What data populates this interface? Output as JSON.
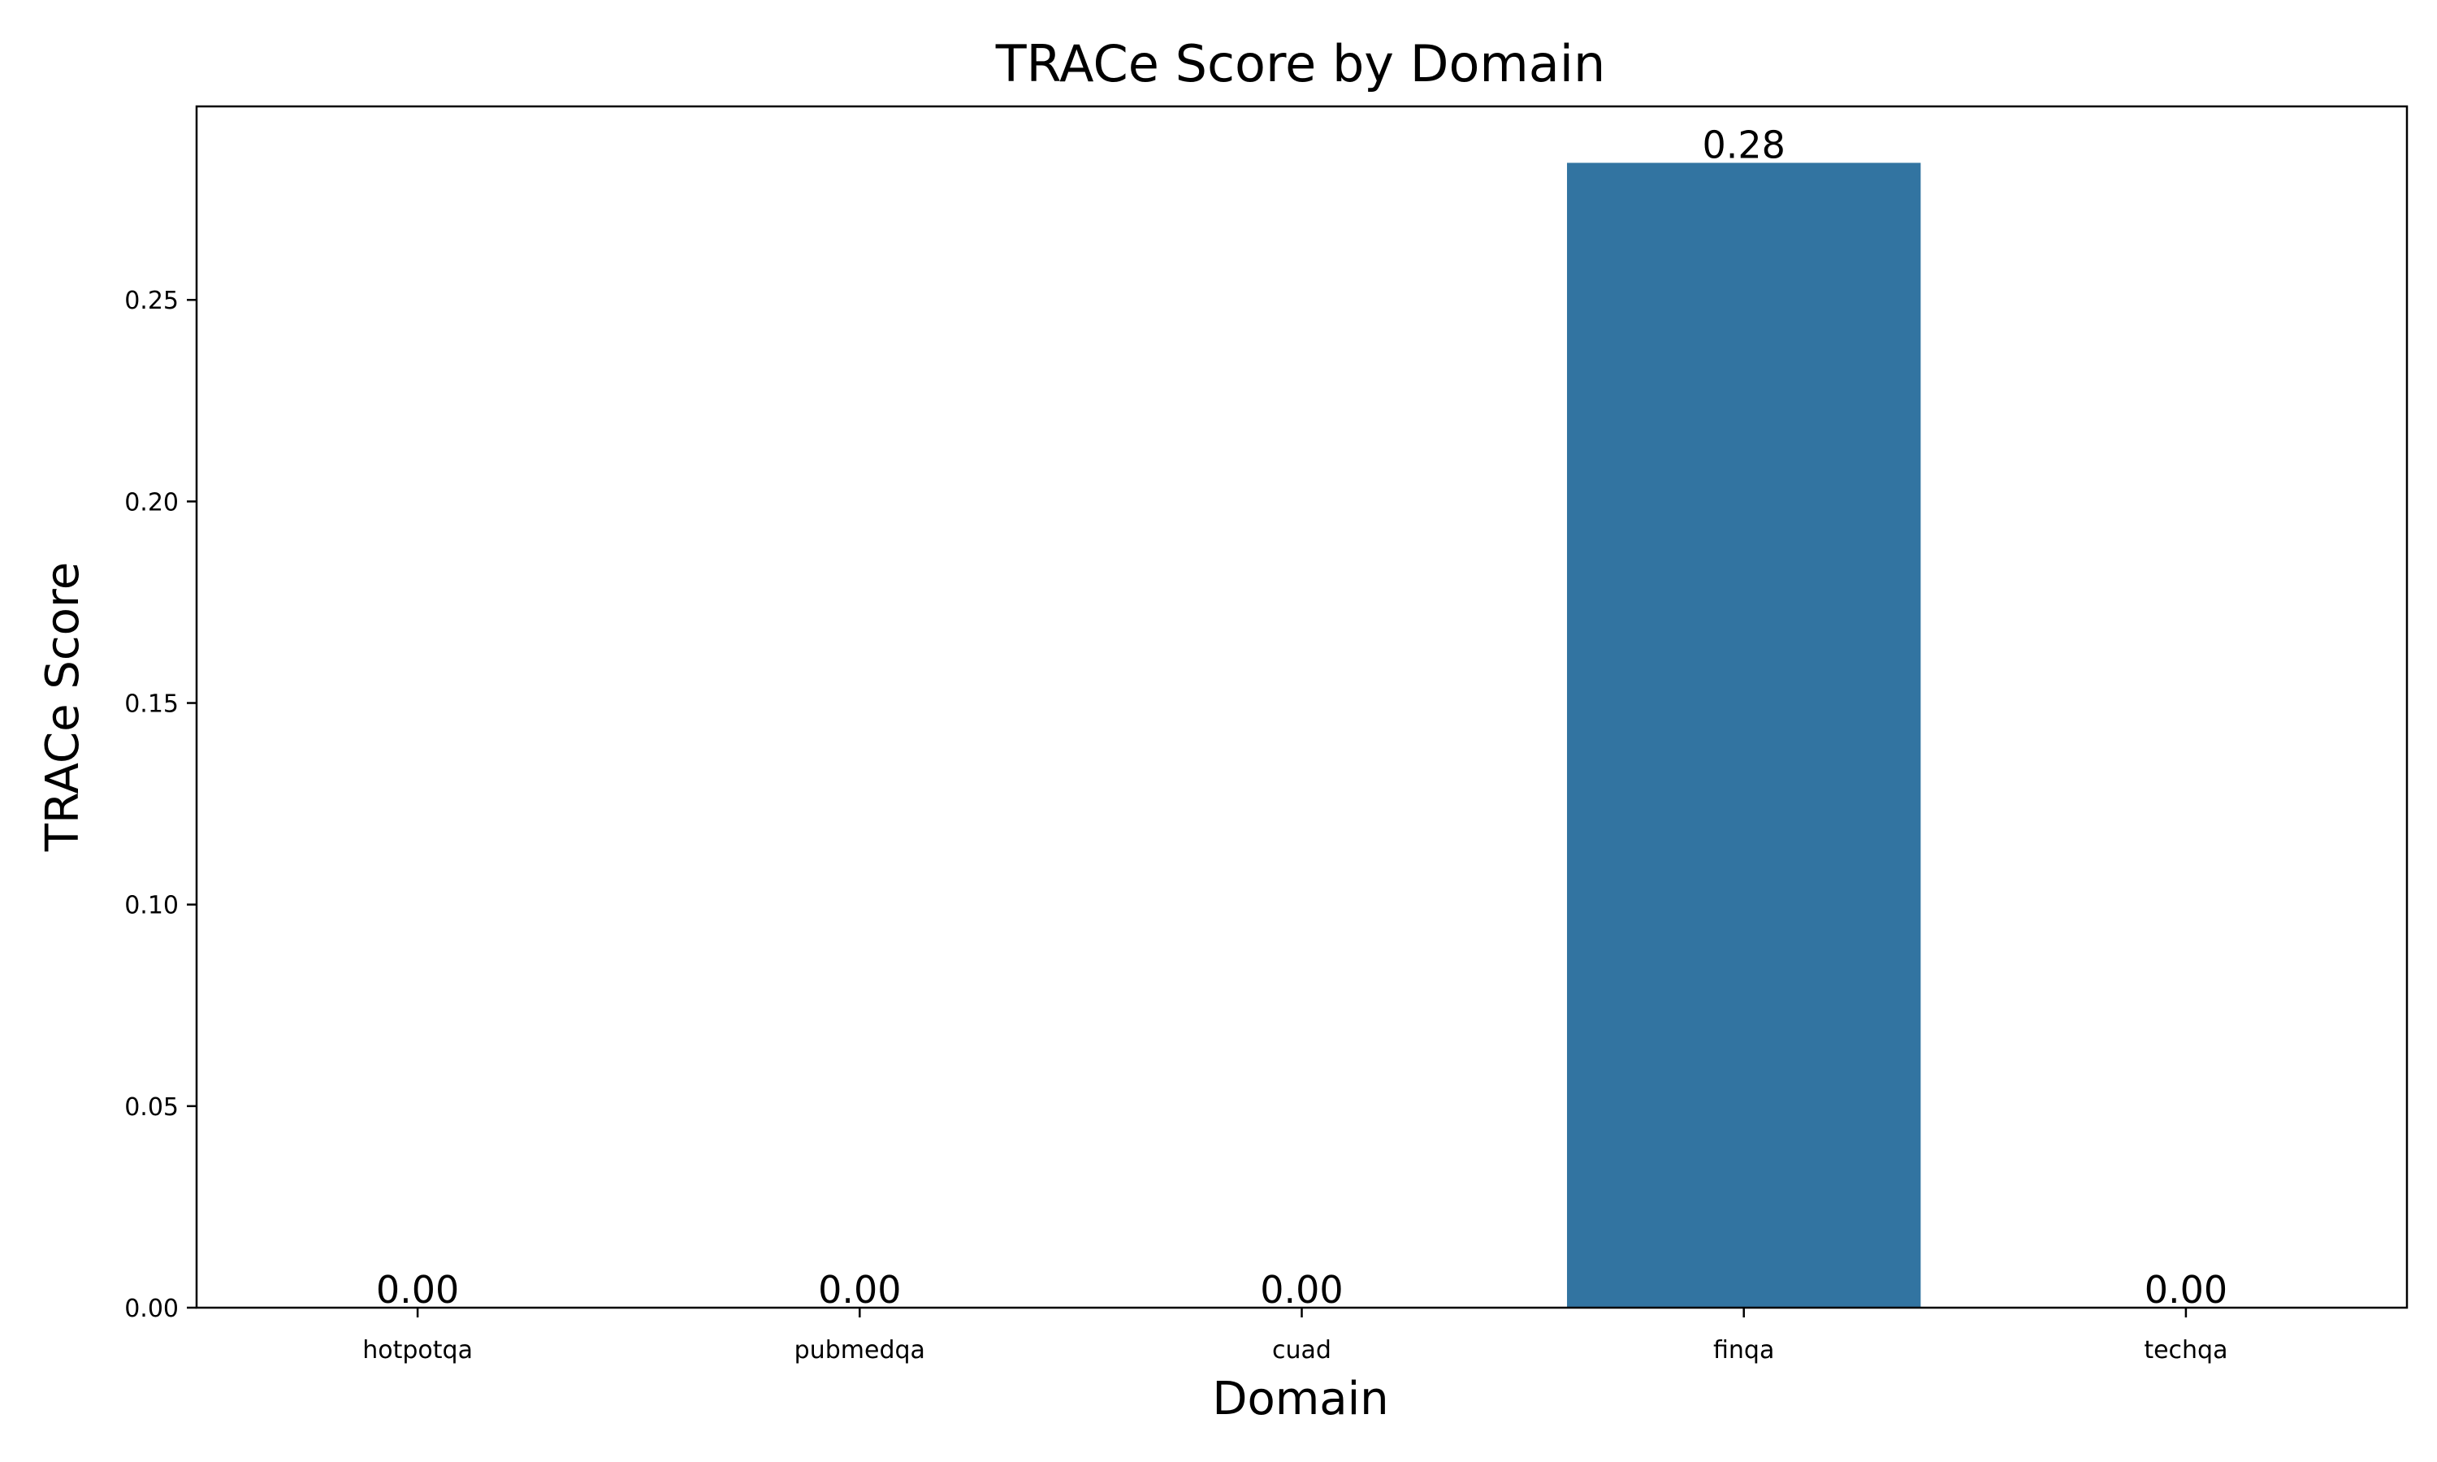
{
  "chart_data": {
    "type": "bar",
    "title": "TRACe Score by Domain",
    "xlabel": "Domain",
    "ylabel": "TRACe Score",
    "categories": [
      "hotpotqa",
      "pubmedqa",
      "cuad",
      "finqa",
      "techqa"
    ],
    "values": [
      0.0,
      0.0,
      0.0,
      0.284,
      0.0
    ],
    "value_labels": [
      "0.00",
      "0.00",
      "0.00",
      "0.28",
      "0.00"
    ],
    "ylim": [
      0,
      0.298
    ],
    "yticks": [
      0.0,
      0.05,
      0.1,
      0.15,
      0.2,
      0.25
    ],
    "ytick_labels": [
      "0.00",
      "0.05",
      "0.10",
      "0.15",
      "0.20",
      "0.25"
    ],
    "bar_color": "#3274a1",
    "grid": false,
    "legend": "none"
  }
}
